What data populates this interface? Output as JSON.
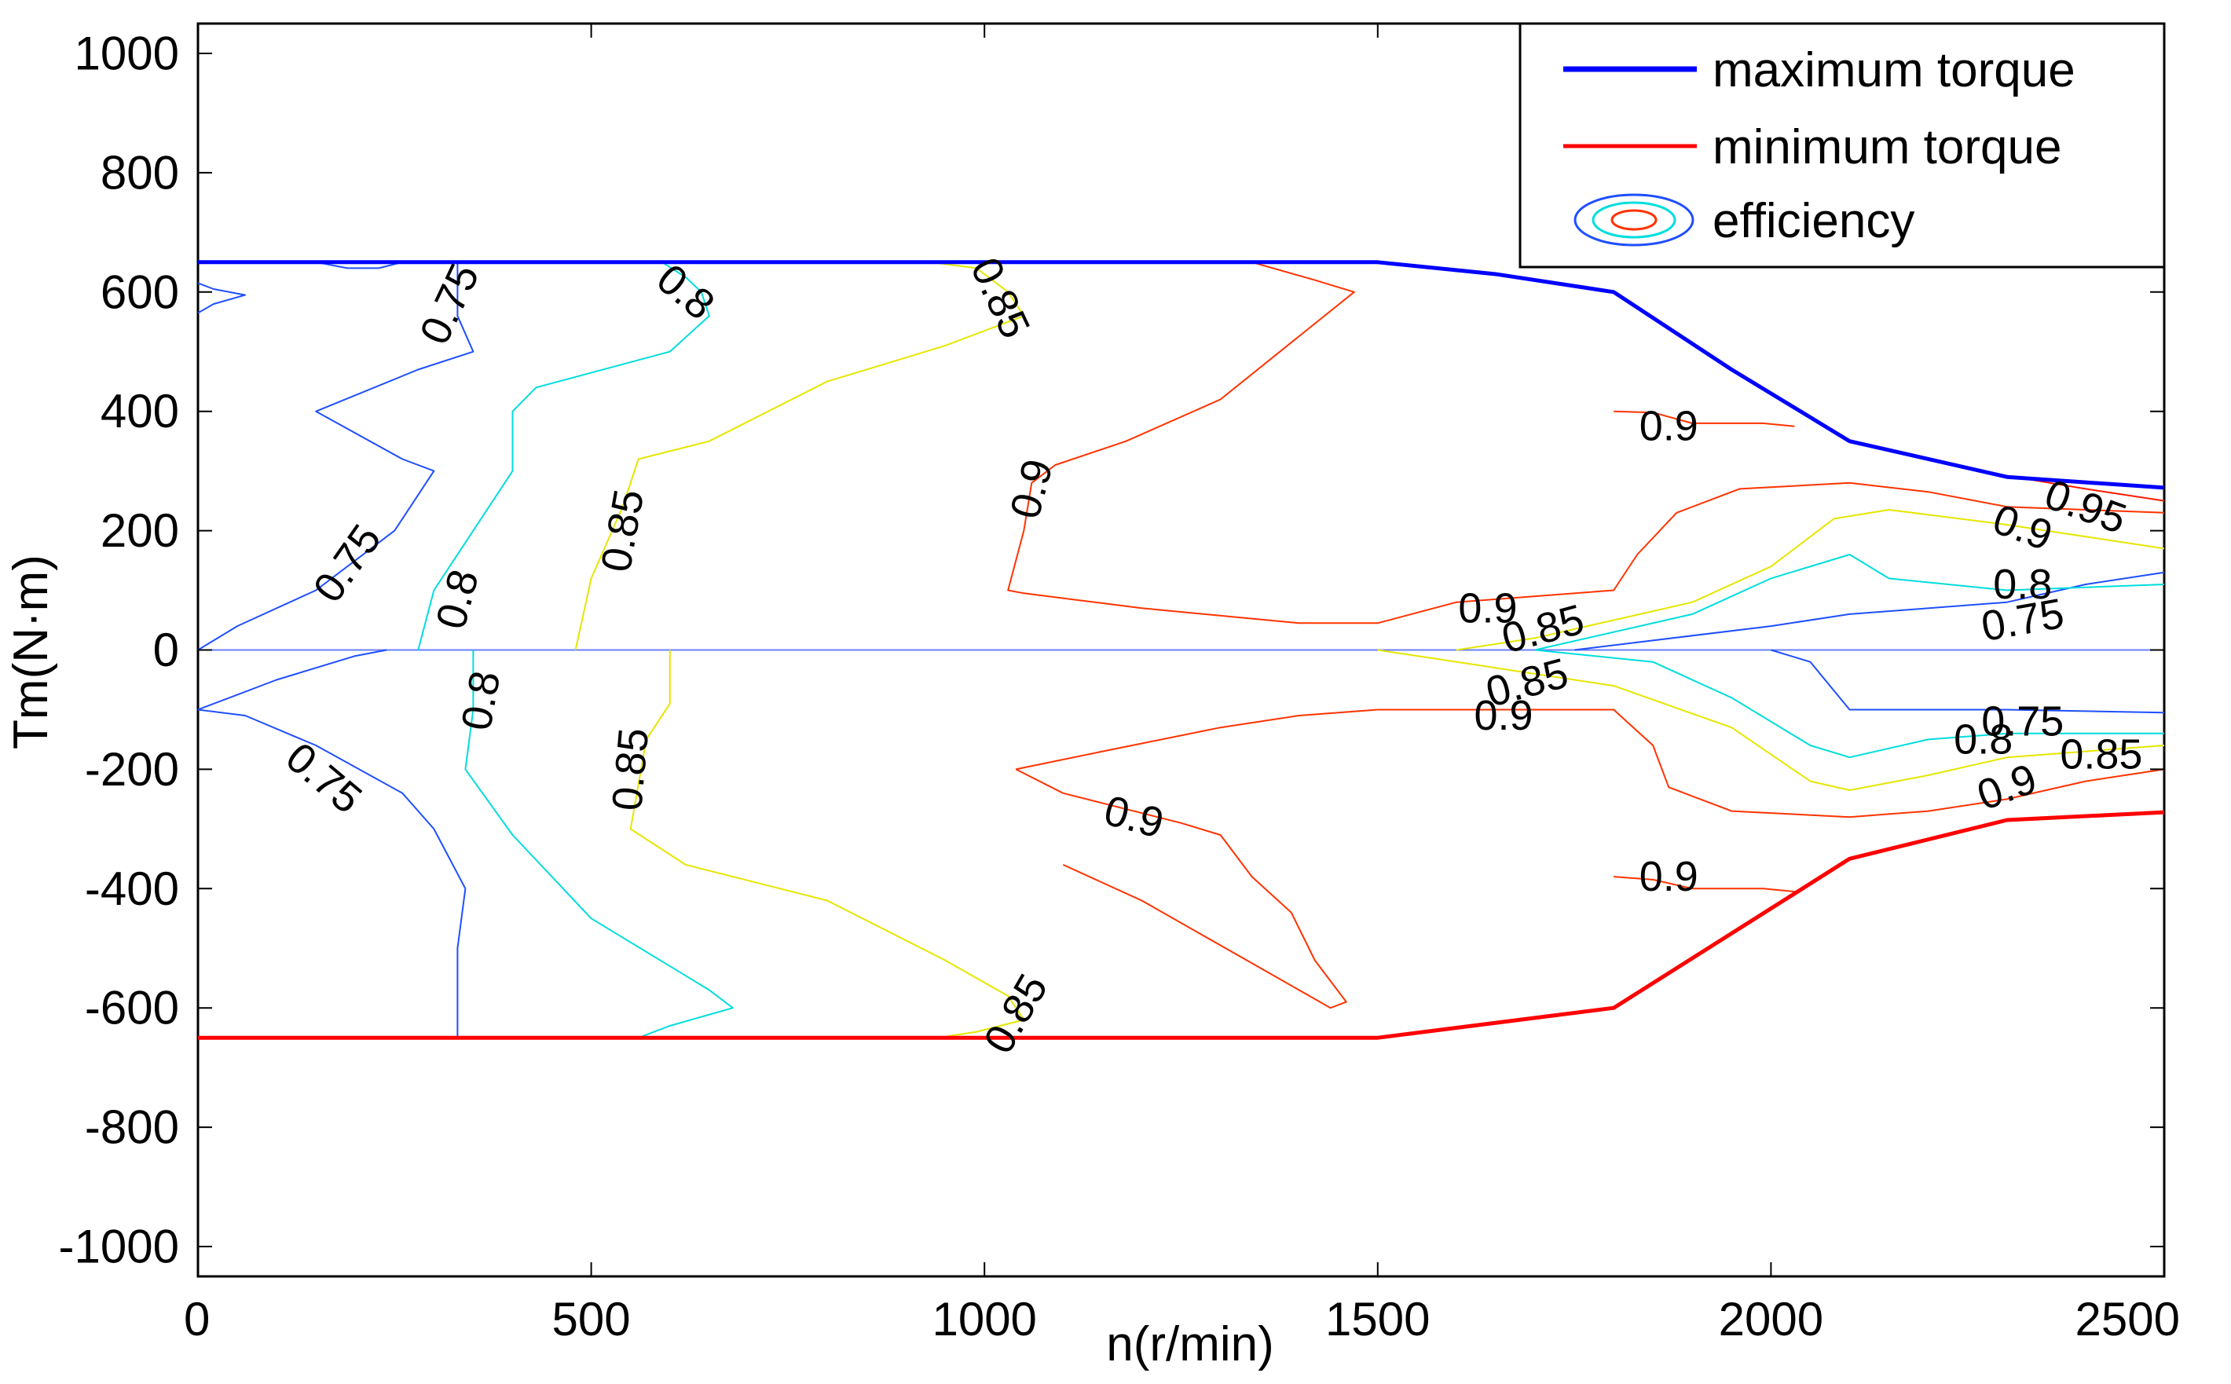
{
  "chart_data": {
    "type": "contour",
    "title": "",
    "xlabel": "n(r/min)",
    "ylabel": "Tm(N·m)",
    "xlim": [
      0,
      2500
    ],
    "ylim": [
      -1050,
      1050
    ],
    "xticks": [
      0,
      500,
      1000,
      1500,
      2000,
      2500
    ],
    "yticks": [
      1000,
      800,
      600,
      400,
      200,
      0,
      -200,
      -400,
      -600,
      -800,
      -1000
    ],
    "legend": {
      "position": "top-right",
      "entries": [
        {
          "label": "maximum torque",
          "color": "#0000ff",
          "kind": "line"
        },
        {
          "label": "minimum torque",
          "color": "#ff0000",
          "kind": "line"
        },
        {
          "label": "efficiency",
          "color": "#0000ff",
          "kind": "contour-icon"
        }
      ]
    },
    "colors": {
      "c075": "#1f4fff",
      "c080": "#00dddd",
      "c085": "#e6e600",
      "c090": "#ff3300",
      "c095": "#ff1a00",
      "zero_line": "#6a7fff",
      "max_torque": "#0000ff",
      "min_torque": "#ff0000"
    },
    "series": [
      {
        "name": "maximum torque",
        "color": "#0000ff",
        "width": 5,
        "points": [
          [
            0,
            650
          ],
          [
            1500,
            650
          ],
          [
            1650,
            630
          ],
          [
            1800,
            600
          ],
          [
            1950,
            470
          ],
          [
            2100,
            350
          ],
          [
            2300,
            290
          ],
          [
            2500,
            272
          ]
        ]
      },
      {
        "name": "minimum torque",
        "color": "#ff0000",
        "width": 5,
        "points": [
          [
            0,
            -650
          ],
          [
            1500,
            -650
          ],
          [
            1800,
            -600
          ],
          [
            2100,
            -350
          ],
          [
            2300,
            -285
          ],
          [
            2500,
            -272
          ]
        ]
      }
    ],
    "contours": [
      {
        "level": "0.75",
        "color_key": "c075",
        "points": [
          [
            0,
            565
          ],
          [
            20,
            580
          ],
          [
            60,
            595
          ],
          [
            20,
            605
          ],
          [
            0,
            615
          ]
        ]
      },
      {
        "level": "0.75",
        "color_key": "c075",
        "points": [
          [
            150,
            650
          ],
          [
            190,
            640
          ],
          [
            230,
            640
          ],
          [
            260,
            650
          ]
        ]
      },
      {
        "level": "0.75",
        "color_key": "c075",
        "points": [
          [
            330,
            650
          ],
          [
            330,
            560
          ],
          [
            350,
            500
          ],
          [
            280,
            470
          ],
          [
            150,
            400
          ],
          [
            260,
            320
          ],
          [
            300,
            300
          ],
          [
            250,
            200
          ],
          [
            150,
            100
          ],
          [
            50,
            40
          ],
          [
            0,
            0
          ]
        ]
      },
      {
        "level": "0.75",
        "color_key": "c075",
        "points": [
          [
            0,
            -100
          ],
          [
            60,
            -110
          ],
          [
            150,
            -160
          ],
          [
            260,
            -240
          ],
          [
            300,
            -300
          ],
          [
            340,
            -400
          ],
          [
            330,
            -500
          ],
          [
            330,
            -650
          ]
        ]
      },
      {
        "level": "0.75",
        "color_key": "c075",
        "points": [
          [
            0,
            -100
          ],
          [
            100,
            -50
          ],
          [
            200,
            -10
          ],
          [
            240,
            0
          ]
        ]
      },
      {
        "level": "0.75",
        "color_key": "c075",
        "points": [
          [
            1750,
            0
          ],
          [
            2000,
            40
          ],
          [
            2100,
            60
          ],
          [
            2300,
            80
          ],
          [
            2400,
            110
          ],
          [
            2500,
            130
          ]
        ]
      },
      {
        "level": "0.75",
        "color_key": "c075",
        "points": [
          [
            2000,
            0
          ],
          [
            2050,
            -20
          ],
          [
            2100,
            -100
          ],
          [
            2300,
            -100
          ],
          [
            2500,
            -105
          ]
        ]
      },
      {
        "level": "0.8",
        "color_key": "c080",
        "points": [
          [
            590,
            650
          ],
          [
            620,
            625
          ],
          [
            640,
            600
          ],
          [
            650,
            560
          ],
          [
            600,
            500
          ],
          [
            430,
            440
          ],
          [
            400,
            400
          ],
          [
            400,
            300
          ],
          [
            350,
            200
          ],
          [
            300,
            100
          ],
          [
            280,
            0
          ]
        ]
      },
      {
        "level": "0.8",
        "color_key": "c080",
        "points": [
          [
            350,
            0
          ],
          [
            350,
            -100
          ],
          [
            340,
            -200
          ],
          [
            400,
            -310
          ],
          [
            500,
            -450
          ],
          [
            650,
            -570
          ],
          [
            680,
            -600
          ],
          [
            600,
            -630
          ],
          [
            560,
            -650
          ]
        ]
      },
      {
        "level": "0.8",
        "color_key": "c080",
        "points": [
          [
            1700,
            0
          ],
          [
            1900,
            60
          ],
          [
            2000,
            120
          ],
          [
            2100,
            160
          ],
          [
            2150,
            120
          ],
          [
            2300,
            100
          ],
          [
            2500,
            110
          ]
        ]
      },
      {
        "level": "0.8",
        "color_key": "c080",
        "points": [
          [
            1700,
            0
          ],
          [
            1850,
            -20
          ],
          [
            1950,
            -80
          ],
          [
            2050,
            -160
          ],
          [
            2100,
            -180
          ],
          [
            2200,
            -150
          ],
          [
            2300,
            -140
          ],
          [
            2500,
            -140
          ]
        ]
      },
      {
        "level": "0.85",
        "color_key": "c085",
        "points": [
          [
            930,
            650
          ],
          [
            990,
            640
          ],
          [
            1030,
            600
          ],
          [
            1050,
            560
          ],
          [
            950,
            510
          ],
          [
            800,
            450
          ],
          [
            650,
            350
          ],
          [
            560,
            320
          ],
          [
            540,
            240
          ],
          [
            500,
            120
          ],
          [
            480,
            0
          ]
        ]
      },
      {
        "level": "0.85",
        "color_key": "c085",
        "points": [
          [
            600,
            0
          ],
          [
            600,
            -90
          ],
          [
            570,
            -150
          ],
          [
            550,
            -300
          ],
          [
            620,
            -360
          ],
          [
            800,
            -420
          ],
          [
            950,
            -520
          ],
          [
            1030,
            -580
          ],
          [
            1050,
            -620
          ],
          [
            990,
            -640
          ],
          [
            940,
            -650
          ]
        ]
      },
      {
        "level": "0.85",
        "color_key": "c085",
        "points": [
          [
            1600,
            0
          ],
          [
            1700,
            20
          ],
          [
            1900,
            80
          ],
          [
            2000,
            140
          ],
          [
            2080,
            220
          ],
          [
            2150,
            235
          ],
          [
            2300,
            210
          ],
          [
            2500,
            170
          ]
        ]
      },
      {
        "level": "0.85",
        "color_key": "c085",
        "points": [
          [
            1500,
            0
          ],
          [
            1650,
            -30
          ],
          [
            1800,
            -60
          ],
          [
            1950,
            -130
          ],
          [
            2050,
            -220
          ],
          [
            2100,
            -235
          ],
          [
            2200,
            -210
          ],
          [
            2300,
            -180
          ],
          [
            2500,
            -160
          ]
        ]
      },
      {
        "level": "0.9",
        "color_key": "c090",
        "points": [
          [
            1340,
            650
          ],
          [
            1420,
            620
          ],
          [
            1470,
            600
          ],
          [
            1300,
            420
          ],
          [
            1180,
            350
          ],
          [
            1090,
            310
          ],
          [
            1060,
            280
          ],
          [
            1050,
            200
          ],
          [
            1030,
            100
          ],
          [
            1050,
            95
          ],
          [
            1200,
            70
          ],
          [
            1400,
            45
          ],
          [
            1500,
            45
          ],
          [
            1600,
            80
          ],
          [
            1700,
            90
          ],
          [
            1800,
            100
          ],
          [
            1830,
            160
          ],
          [
            1880,
            230
          ],
          [
            1960,
            270
          ],
          [
            2100,
            280
          ],
          [
            2200,
            265
          ],
          [
            2300,
            240
          ],
          [
            2500,
            230
          ]
        ]
      },
      {
        "level": "0.9",
        "color_key": "c090",
        "points": [
          [
            1500,
            -100
          ],
          [
            1600,
            -100
          ],
          [
            1800,
            -100
          ],
          [
            1850,
            -160
          ],
          [
            1870,
            -230
          ],
          [
            1950,
            -270
          ],
          [
            2100,
            -280
          ],
          [
            2200,
            -270
          ],
          [
            2300,
            -250
          ],
          [
            2400,
            -220
          ],
          [
            2500,
            -200
          ]
        ]
      },
      {
        "level": "0.9",
        "color_key": "c090",
        "points": [
          [
            1040,
            -200
          ],
          [
            1100,
            -240
          ],
          [
            1250,
            -290
          ],
          [
            1300,
            -310
          ],
          [
            1340,
            -380
          ],
          [
            1390,
            -440
          ],
          [
            1420,
            -520
          ],
          [
            1460,
            -590
          ],
          [
            1440,
            -600
          ],
          [
            1340,
            -525
          ],
          [
            1200,
            -420
          ],
          [
            1100,
            -360
          ]
        ]
      },
      {
        "level": "0.9",
        "color_key": "c090",
        "points": [
          [
            1040,
            -200
          ],
          [
            1150,
            -170
          ],
          [
            1300,
            -130
          ],
          [
            1400,
            -110
          ],
          [
            1500,
            -100
          ]
        ]
      },
      {
        "level": "0.9",
        "color_key": "c090",
        "points": [
          [
            1800,
            400
          ],
          [
            1850,
            398
          ],
          [
            1900,
            380
          ],
          [
            1990,
            380
          ],
          [
            2030,
            375
          ]
        ]
      },
      {
        "level": "0.9",
        "color_key": "c090",
        "points": [
          [
            1800,
            -380
          ],
          [
            1850,
            -385
          ],
          [
            1900,
            -400
          ],
          [
            1990,
            -400
          ],
          [
            2030,
            -405
          ]
        ]
      },
      {
        "level": "0.95",
        "color_key": "c095",
        "points": [
          [
            2300,
            292
          ],
          [
            2400,
            270
          ],
          [
            2500,
            250
          ]
        ]
      }
    ],
    "contour_labels": [
      {
        "text": "0.75",
        "x": 320,
        "y": 580,
        "angle": -65
      },
      {
        "text": "0.8",
        "x": 620,
        "y": 600,
        "angle": 40
      },
      {
        "text": "0.85",
        "x": 1020,
        "y": 590,
        "angle": 65
      },
      {
        "text": "0.9",
        "x": 1870,
        "y": 375,
        "angle": 0
      },
      {
        "text": "0.95",
        "x": 2400,
        "y": 240,
        "angle": 20
      },
      {
        "text": "0.9",
        "x": 2320,
        "y": 205,
        "angle": 20
      },
      {
        "text": "0.8",
        "x": 2320,
        "y": 110,
        "angle": 0
      },
      {
        "text": "0.75",
        "x": 2320,
        "y": 50,
        "angle": -10
      },
      {
        "text": "0.9",
        "x": 1640,
        "y": 70,
        "angle": 0
      },
      {
        "text": "0.85",
        "x": 1710,
        "y": 35,
        "angle": -15
      },
      {
        "text": "0.85",
        "x": 1690,
        "y": -55,
        "angle": -15
      },
      {
        "text": "0.9",
        "x": 1660,
        "y": -110,
        "angle": 0
      },
      {
        "text": "0.9",
        "x": 1060,
        "y": 270,
        "angle": -75
      },
      {
        "text": "0.85",
        "x": 540,
        "y": 200,
        "angle": -80
      },
      {
        "text": "0.8",
        "x": 330,
        "y": 85,
        "angle": -75
      },
      {
        "text": "0.75",
        "x": 190,
        "y": 145,
        "angle": -55
      },
      {
        "text": "0.8",
        "x": 360,
        "y": -85,
        "angle": -80
      },
      {
        "text": "0.85",
        "x": 550,
        "y": -200,
        "angle": -85
      },
      {
        "text": "0.75",
        "x": 160,
        "y": -215,
        "angle": 40
      },
      {
        "text": "0.9",
        "x": 1190,
        "y": -280,
        "angle": 15
      },
      {
        "text": "0.9",
        "x": 1870,
        "y": -380,
        "angle": 0
      },
      {
        "text": "0.85",
        "x": 1040,
        "y": -610,
        "angle": -60
      },
      {
        "text": "0.75",
        "x": 2320,
        "y": -120,
        "angle": 0
      },
      {
        "text": "0.8",
        "x": 2270,
        "y": -150,
        "angle": 0
      },
      {
        "text": "0.85",
        "x": 2420,
        "y": -175,
        "angle": 0
      },
      {
        "text": "0.9",
        "x": 2300,
        "y": -230,
        "angle": -20
      }
    ]
  }
}
